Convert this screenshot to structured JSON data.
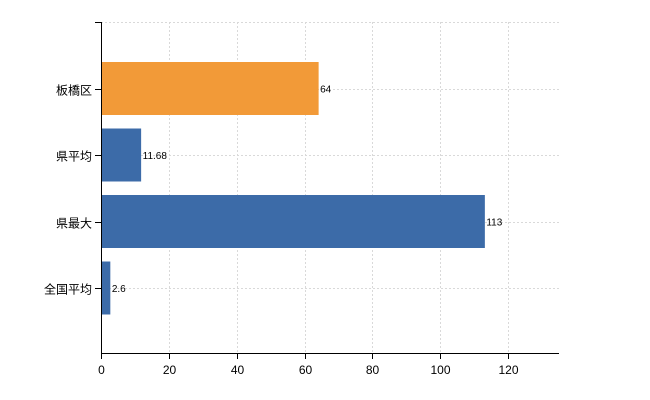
{
  "chart_data": {
    "type": "bar",
    "orientation": "horizontal",
    "categories": [
      "板橋区",
      "県平均",
      "県最大",
      "全国平均"
    ],
    "values": [
      64,
      11.68,
      113,
      2.6
    ],
    "value_labels": [
      "64",
      "11.68",
      "113",
      "2.6"
    ],
    "bar_colors": [
      "#F29A38",
      "#3C6BA8",
      "#3C6BA8",
      "#3C6BA8"
    ],
    "xlim": [
      0,
      135
    ],
    "x_ticks": [
      0,
      20,
      40,
      60,
      80,
      100,
      120
    ],
    "x_tick_labels": [
      "0",
      "20",
      "40",
      "60",
      "80",
      "100",
      "120"
    ],
    "grid": true,
    "title": "",
    "xlabel": "",
    "ylabel": ""
  }
}
